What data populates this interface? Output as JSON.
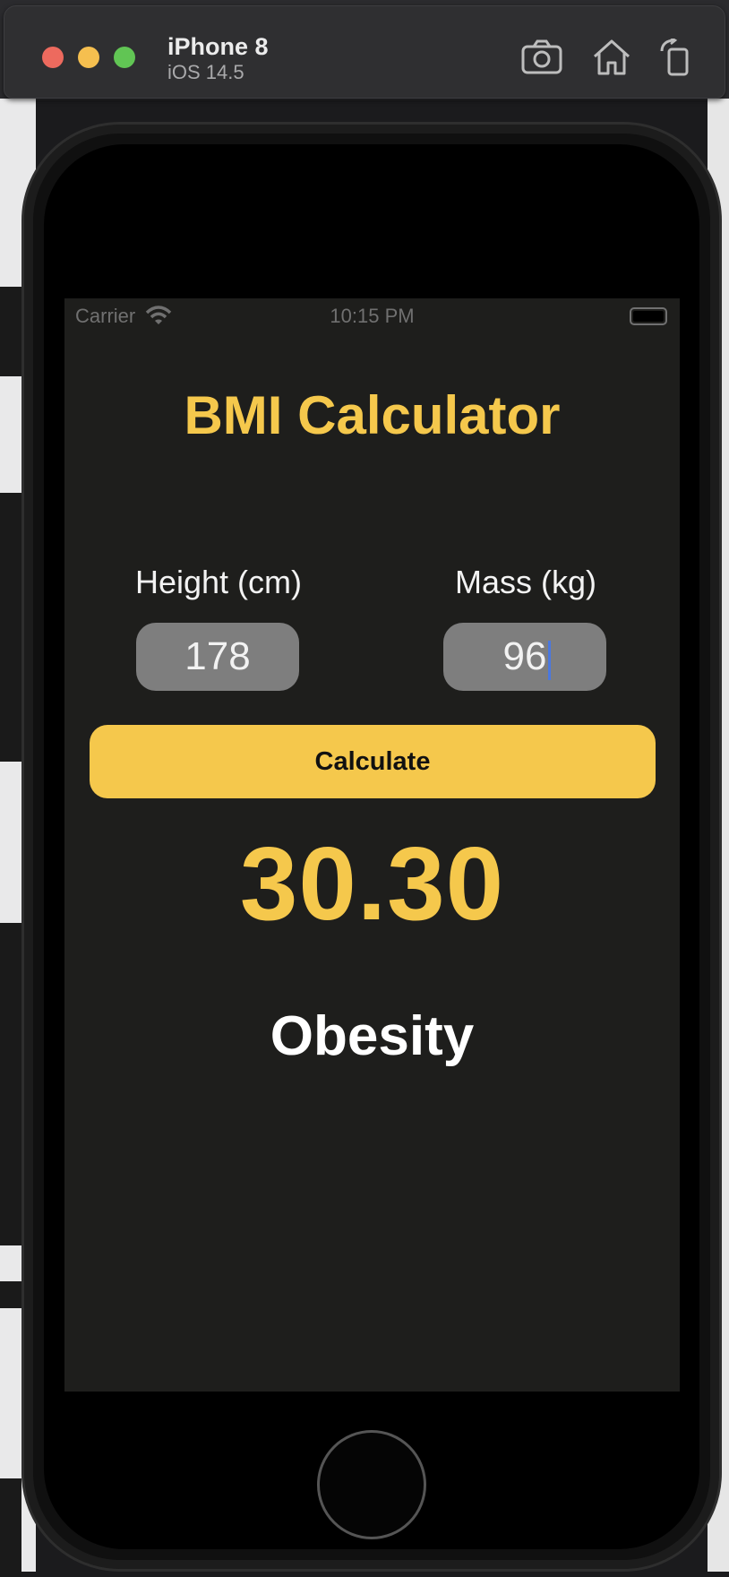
{
  "simulator": {
    "device_name": "iPhone 8",
    "os_version": "iOS 14.5",
    "toolbar_icons": [
      "screenshot-icon",
      "home-icon",
      "rotate-icon"
    ]
  },
  "status_bar": {
    "carrier": "Carrier",
    "time": "10:15 PM"
  },
  "app": {
    "title": "BMI Calculator",
    "height_label": "Height (cm)",
    "height_value": "178",
    "mass_label": "Mass (kg)",
    "mass_value": "96",
    "calculate_label": "Calculate",
    "bmi_result": "30.30",
    "bmi_category": "Obesity"
  },
  "colors": {
    "accent": "#f5c84c",
    "screen_background": "#1e1e1c",
    "input_background": "#7e7e7e"
  }
}
